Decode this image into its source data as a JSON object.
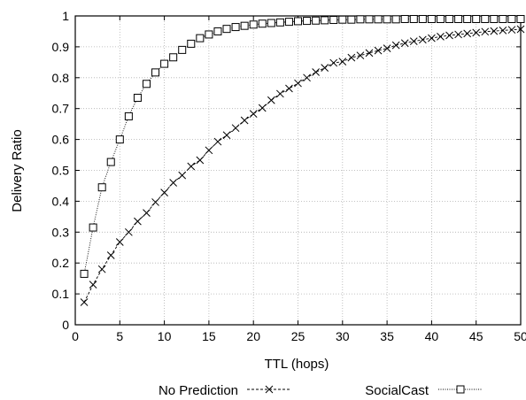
{
  "chart_data": {
    "type": "line",
    "xlabel": "TTL (hops)",
    "ylabel": "Delivery Ratio",
    "xlim": [
      0,
      50
    ],
    "ylim": [
      0,
      1
    ],
    "xticks": [
      0,
      5,
      10,
      15,
      20,
      25,
      30,
      35,
      40,
      45,
      50
    ],
    "yticks": [
      0,
      0.1,
      0.2,
      0.3,
      0.4,
      0.5,
      0.6,
      0.7,
      0.8,
      0.9,
      1
    ],
    "grid": true,
    "legend_position": "bottom",
    "series": [
      {
        "name": "No Prediction",
        "marker": "x",
        "line_style": "dashed",
        "color": "#000000",
        "x": [
          1,
          2,
          3,
          4,
          5,
          6,
          7,
          8,
          9,
          10,
          11,
          12,
          13,
          14,
          15,
          16,
          17,
          18,
          19,
          20,
          21,
          22,
          23,
          24,
          25,
          26,
          27,
          28,
          29,
          30,
          31,
          32,
          33,
          34,
          35,
          36,
          37,
          38,
          39,
          40,
          41,
          42,
          43,
          44,
          45,
          46,
          47,
          48,
          49,
          50
        ],
        "y": [
          0.073,
          0.13,
          0.18,
          0.225,
          0.268,
          0.3,
          0.335,
          0.362,
          0.397,
          0.428,
          0.46,
          0.484,
          0.513,
          0.533,
          0.565,
          0.593,
          0.614,
          0.637,
          0.662,
          0.683,
          0.702,
          0.727,
          0.748,
          0.765,
          0.782,
          0.8,
          0.818,
          0.832,
          0.848,
          0.852,
          0.865,
          0.872,
          0.88,
          0.888,
          0.895,
          0.905,
          0.912,
          0.918,
          0.923,
          0.928,
          0.933,
          0.937,
          0.94,
          0.943,
          0.946,
          0.949,
          0.951,
          0.953,
          0.955,
          0.957
        ]
      },
      {
        "name": "SocialCast",
        "marker": "square",
        "line_style": "dotted",
        "color": "#000000",
        "x": [
          1,
          2,
          3,
          4,
          5,
          6,
          7,
          8,
          9,
          10,
          11,
          12,
          13,
          14,
          15,
          16,
          17,
          18,
          19,
          20,
          21,
          22,
          23,
          24,
          25,
          26,
          27,
          28,
          29,
          30,
          31,
          32,
          33,
          34,
          35,
          36,
          37,
          38,
          39,
          40,
          41,
          42,
          43,
          44,
          45,
          46,
          47,
          48,
          49,
          50
        ],
        "y": [
          0.165,
          0.315,
          0.445,
          0.527,
          0.6,
          0.675,
          0.735,
          0.78,
          0.817,
          0.845,
          0.866,
          0.89,
          0.91,
          0.928,
          0.94,
          0.95,
          0.958,
          0.964,
          0.968,
          0.972,
          0.975,
          0.977,
          0.979,
          0.981,
          0.983,
          0.984,
          0.985,
          0.986,
          0.987,
          0.988,
          0.988,
          0.989,
          0.989,
          0.989,
          0.989,
          0.989,
          0.99,
          0.99,
          0.99,
          0.99,
          0.99,
          0.99,
          0.99,
          0.99,
          0.99,
          0.99,
          0.99,
          0.99,
          0.99,
          0.99
        ]
      }
    ]
  }
}
